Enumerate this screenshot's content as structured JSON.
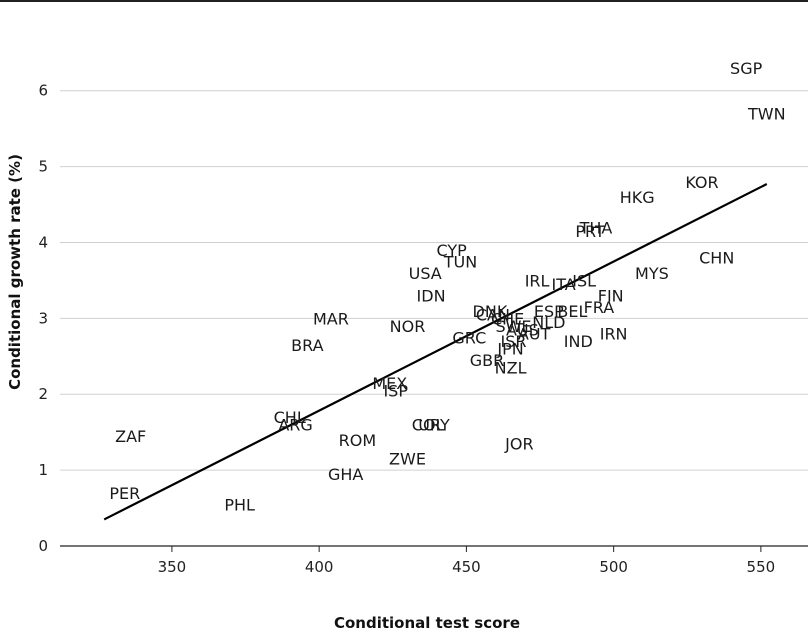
{
  "chart_data": {
    "type": "scatter",
    "title": "",
    "xlabel": "Conditional test score",
    "ylabel": "Conditional growth rate (%)",
    "xlim": [
      312,
      566
    ],
    "ylim": [
      0,
      6.8
    ],
    "xticks": [
      350,
      400,
      450,
      500,
      550
    ],
    "yticks": [
      0,
      1,
      2,
      3,
      4,
      5,
      6
    ],
    "grid": "horizontal",
    "points": [
      {
        "label": "SGP",
        "x": 545,
        "y": 6.3
      },
      {
        "label": "TWN",
        "x": 552,
        "y": 5.7
      },
      {
        "label": "KOR",
        "x": 530,
        "y": 4.8
      },
      {
        "label": "HKG",
        "x": 508,
        "y": 4.6
      },
      {
        "label": "THA",
        "x": 494,
        "y": 4.2
      },
      {
        "label": "PRT",
        "x": 492,
        "y": 4.15
      },
      {
        "label": "CHN",
        "x": 535,
        "y": 3.8
      },
      {
        "label": "MYS",
        "x": 513,
        "y": 3.6
      },
      {
        "label": "ISL",
        "x": 490,
        "y": 3.5
      },
      {
        "label": "ITA",
        "x": 483,
        "y": 3.45
      },
      {
        "label": "IRL",
        "x": 474,
        "y": 3.5
      },
      {
        "label": "FIN",
        "x": 499,
        "y": 3.3
      },
      {
        "label": "FRA",
        "x": 495,
        "y": 3.15
      },
      {
        "label": "BEL",
        "x": 486,
        "y": 3.1
      },
      {
        "label": "ESP",
        "x": 478,
        "y": 3.1
      },
      {
        "label": "NLD",
        "x": 478,
        "y": 2.95
      },
      {
        "label": "DNK",
        "x": 458,
        "y": 3.1
      },
      {
        "label": "CAN",
        "x": 459,
        "y": 3.05
      },
      {
        "label": "CHE",
        "x": 464,
        "y": 3.0
      },
      {
        "label": "SWE",
        "x": 466,
        "y": 2.9
      },
      {
        "label": "AUS",
        "x": 469,
        "y": 2.85
      },
      {
        "label": "AUT",
        "x": 473,
        "y": 2.8
      },
      {
        "label": "IRN",
        "x": 500,
        "y": 2.8
      },
      {
        "label": "IND",
        "x": 488,
        "y": 2.7
      },
      {
        "label": "GRC",
        "x": 451,
        "y": 2.75
      },
      {
        "label": "JPN",
        "x": 465,
        "y": 2.6
      },
      {
        "label": "ISR",
        "x": 466,
        "y": 2.7
      },
      {
        "label": "GBR",
        "x": 457,
        "y": 2.45
      },
      {
        "label": "NZL",
        "x": 465,
        "y": 2.35
      },
      {
        "label": "CYP",
        "x": 445,
        "y": 3.9
      },
      {
        "label": "TUN",
        "x": 448,
        "y": 3.75
      },
      {
        "label": "USA",
        "x": 436,
        "y": 3.6
      },
      {
        "label": "IDN",
        "x": 438,
        "y": 3.3
      },
      {
        "label": "NOR",
        "x": 430,
        "y": 2.9
      },
      {
        "label": "MAR",
        "x": 404,
        "y": 3.0
      },
      {
        "label": "BRA",
        "x": 396,
        "y": 2.65
      },
      {
        "label": "MEX",
        "x": 424,
        "y": 2.15
      },
      {
        "label": "ISP",
        "x": 426,
        "y": 2.05
      },
      {
        "label": "CHL",
        "x": 390,
        "y": 1.7
      },
      {
        "label": "ARG",
        "x": 392,
        "y": 1.6
      },
      {
        "label": "COL",
        "x": 437,
        "y": 1.6
      },
      {
        "label": "URY",
        "x": 439,
        "y": 1.6
      },
      {
        "label": "ROM",
        "x": 413,
        "y": 1.4
      },
      {
        "label": "ZWE",
        "x": 430,
        "y": 1.15
      },
      {
        "label": "GHA",
        "x": 409,
        "y": 0.95
      },
      {
        "label": "JOR",
        "x": 468,
        "y": 1.35
      },
      {
        "label": "ZAF",
        "x": 336,
        "y": 1.45
      },
      {
        "label": "PER",
        "x": 334,
        "y": 0.7
      },
      {
        "label": "PHL",
        "x": 373,
        "y": 0.55
      }
    ],
    "trendline": {
      "x": [
        327,
        552
      ],
      "y": [
        0.35,
        4.77
      ]
    }
  }
}
